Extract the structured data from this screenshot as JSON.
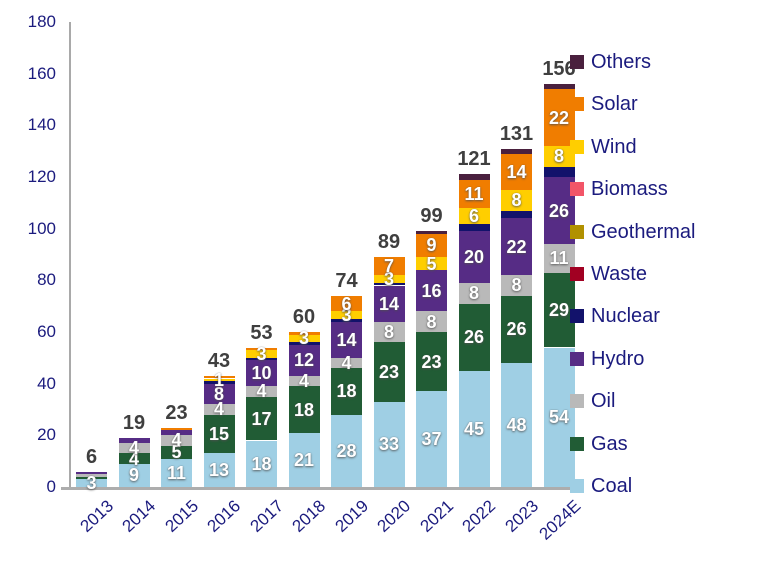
{
  "colors": {
    "background": "#ffffff",
    "axis_text": "#1b1b7e",
    "axis_line": "#a9a9a9",
    "total_label": "#3f3f3f",
    "segment_label": "#ffffff"
  },
  "chart_data": {
    "type": "bar",
    "stacked": true,
    "grid": false,
    "legend_position": "right",
    "ylim": [
      0,
      180
    ],
    "yticks": [
      0,
      20,
      40,
      60,
      80,
      100,
      120,
      140,
      160,
      180
    ],
    "categories": [
      "2013",
      "2014",
      "2015",
      "2016",
      "2017",
      "2018",
      "2019",
      "2020",
      "2021",
      "2022",
      "2023",
      "2024E"
    ],
    "totals": [
      6,
      19,
      23,
      43,
      53,
      60,
      74,
      89,
      99,
      121,
      131,
      156
    ],
    "legend_order_top_to_bottom": [
      "Others",
      "Solar",
      "Wind",
      "Biomass",
      "Geothermal",
      "Waste",
      "Nuclear",
      "Hydro",
      "Oil",
      "Gas",
      "Coal"
    ],
    "series": [
      {
        "name": "Coal",
        "color": "#9fcfe4",
        "values": [
          3,
          9,
          11,
          13,
          18,
          21,
          28,
          33,
          37,
          45,
          48,
          54
        ],
        "labels": [
          "3",
          "9",
          "11",
          "13",
          "18",
          "21",
          "28",
          "33",
          "37",
          "45",
          "48",
          "54"
        ]
      },
      {
        "name": "Gas",
        "color": "#215c35",
        "values": [
          1,
          4,
          5,
          15,
          17,
          18,
          18,
          23,
          23,
          26,
          26,
          29
        ],
        "labels": [
          "",
          "4",
          "5",
          "15",
          "17",
          "18",
          "18",
          "23",
          "23",
          "26",
          "26",
          "29"
        ]
      },
      {
        "name": "Oil",
        "color": "#b9b9b9",
        "values": [
          1,
          4,
          4,
          4,
          4,
          4,
          4,
          8,
          8,
          8,
          8,
          11
        ],
        "labels": [
          "",
          "4",
          "4",
          "4",
          "4",
          "4",
          "4",
          "8",
          "8",
          "8",
          "8",
          "11"
        ]
      },
      {
        "name": "Hydro",
        "color": "#562c85",
        "values": [
          1,
          2,
          2,
          8,
          10,
          12,
          14,
          14,
          16,
          20,
          22,
          26
        ],
        "labels": [
          "",
          "",
          "",
          "8",
          "10",
          "12",
          "14",
          "14",
          "16",
          "20",
          "22",
          "26"
        ]
      },
      {
        "name": "Nuclear",
        "color": "#12126b",
        "values": [
          0,
          0,
          0,
          1,
          1,
          1,
          1,
          1,
          0,
          3,
          3,
          4
        ],
        "labels": [
          "",
          "",
          "",
          "",
          "",
          "",
          "",
          "",
          "",
          "",
          "",
          ""
        ]
      },
      {
        "name": "Waste",
        "color": "#a10022",
        "values": [
          0,
          0,
          0,
          0,
          0,
          0,
          0,
          0,
          0,
          0,
          0,
          0
        ],
        "labels": [
          "",
          "",
          "",
          "",
          "",
          "",
          "",
          "",
          "",
          "",
          "",
          ""
        ]
      },
      {
        "name": "Geothermal",
        "color": "#b19100",
        "values": [
          0,
          0,
          0,
          0,
          0,
          0,
          0,
          0,
          0,
          0,
          0,
          0
        ],
        "labels": [
          "",
          "",
          "",
          "",
          "",
          "",
          "",
          "",
          "",
          "",
          "",
          ""
        ]
      },
      {
        "name": "Biomass",
        "color": "#f25568",
        "values": [
          0,
          0,
          0,
          0,
          0,
          0,
          0,
          0,
          0,
          0,
          0,
          0
        ],
        "labels": [
          "",
          "",
          "",
          "",
          "",
          "",
          "",
          "",
          "",
          "",
          "",
          ""
        ]
      },
      {
        "name": "Wind",
        "color": "#ffce00",
        "values": [
          0,
          0,
          0,
          1,
          3,
          3,
          3,
          3,
          5,
          6,
          8,
          8
        ],
        "labels": [
          "",
          "",
          "",
          "1",
          "3",
          "3",
          "3",
          "3",
          "5",
          "6",
          "8",
          "8"
        ]
      },
      {
        "name": "Solar",
        "color": "#f07d00",
        "values": [
          0,
          0,
          1,
          1,
          1,
          1,
          6,
          7,
          9,
          11,
          14,
          22
        ],
        "labels": [
          "",
          "",
          "",
          "",
          "",
          "",
          "6",
          "7",
          "9",
          "11",
          "14",
          "22"
        ]
      },
      {
        "name": "Others",
        "color": "#4a203e",
        "values": [
          0,
          0,
          0,
          0,
          0,
          0,
          0,
          0,
          1,
          2,
          2,
          2
        ],
        "labels": [
          "",
          "",
          "",
          "",
          "",
          "",
          "",
          "",
          "",
          "",
          "",
          ""
        ]
      }
    ]
  }
}
